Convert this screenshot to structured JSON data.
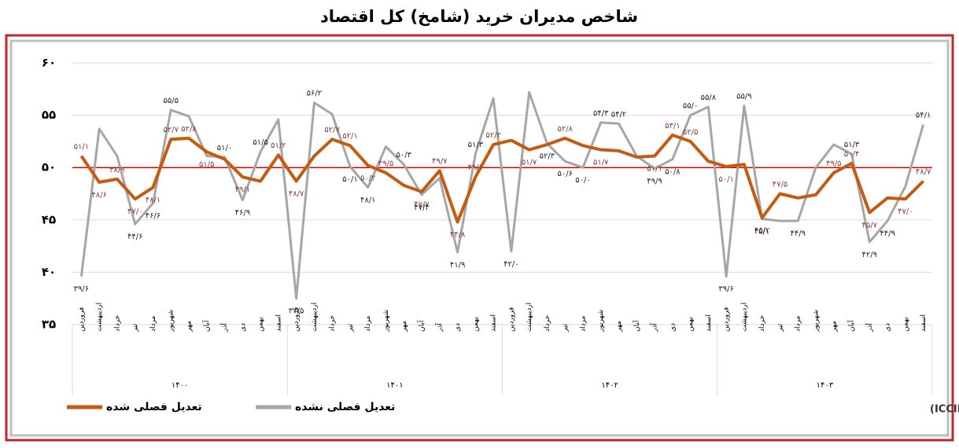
{
  "chart_data": {
    "type": "line",
    "title": "شاخص مدیران خرید (شامخ) کل اقتصاد",
    "source": "منبع: اتاق بازرگانی، صنایع، معادن و کشاورزی ایران (ICCIMA)",
    "categories": [
      "فروردین",
      "اردیبهشت",
      "خرداد",
      "تیر",
      "مرداد",
      "شهریور",
      "مهر",
      "آبان",
      "آذر",
      "دی",
      "بهمن",
      "اسفند",
      "فروردین",
      "اردیبهشت",
      "خرداد",
      "تیر",
      "مرداد",
      "شهریور",
      "مهر",
      "آبان",
      "آذر",
      "دی",
      "بهمن",
      "اسفند",
      "فروردین",
      "اردیبهشت",
      "خرداد",
      "تیر",
      "مرداد",
      "شهریور",
      "مهر",
      "آبان",
      "آذر",
      "دی",
      "بهمن",
      "اسفند",
      "فروردین",
      "اردیبهشت",
      "خرداد",
      "تیر",
      "مرداد",
      "شهریور",
      "مهر",
      "آبان",
      "آذر",
      "دی",
      "بهمن",
      "اسفند"
    ],
    "year_groups": [
      "۱۴۰۰",
      "۱۴۰۱",
      "۱۴۰۲",
      "۱۴۰۳"
    ],
    "series": [
      {
        "name": "تعدیل فصلی شده",
        "color": "#c55a11",
        "values": [
          51.1,
          48.6,
          48.9,
          47.0,
          48.1,
          52.7,
          52.8,
          51.5,
          50.8,
          49.1,
          48.7,
          51.2,
          48.7,
          51.1,
          52.7,
          52.1,
          50.2,
          49.5,
          48.3,
          47.7,
          49.7,
          44.8,
          49.1,
          52.2,
          52.6,
          51.7,
          52.2,
          52.8,
          52.1,
          51.7,
          51.6,
          51.0,
          51.1,
          53.1,
          52.5,
          50.6,
          50.1,
          50.3,
          45.2,
          47.5,
          47.1,
          47.4,
          49.5,
          50.4,
          45.7,
          47.1,
          47.0,
          48.7
        ],
        "value_labels": [
          "۵۱/۱",
          "۴۸/۶",
          "۴۸/۹",
          "۴۷/۰",
          "۴۸/۱",
          "۵۲/۷",
          "۵۲/۸",
          "۵۱/۵",
          null,
          "۴۹/۱",
          null,
          "۵۱/۲",
          "۴۸/۷",
          null,
          "۵۲/۷",
          "۵۲/۱",
          "۵۰/۲",
          "۴۹/۵",
          null,
          "۴۷/۷",
          "۴۹/۷",
          "۴۴/۸",
          "۴۹/۱",
          "۵۲/۲",
          null,
          "۵۱/۷",
          null,
          "۵۲/۸",
          null,
          "۵۱/۷",
          null,
          null,
          "۵۱/۱",
          "۵۳/۱",
          "۵۲/۵",
          null,
          "۵۰/۱",
          null,
          "۴۵/۲",
          "۴۷/۵",
          null,
          null,
          "۴۹/۵",
          "۵۰/۴",
          "۴۵/۷",
          null,
          "۴۷/۰",
          "۴۸/۷"
        ]
      },
      {
        "name": "تعدیل فصلی نشده",
        "color": "#a6a6a6",
        "values": [
          39.6,
          53.7,
          51.1,
          44.6,
          46.6,
          55.5,
          54.9,
          51.1,
          51.0,
          46.9,
          51.5,
          54.6,
          37.5,
          56.2,
          55.1,
          50.1,
          48.1,
          52.0,
          50.3,
          47.4,
          49.0,
          41.9,
          51.3,
          56.6,
          42.0,
          57.2,
          52.3,
          50.6,
          50.0,
          54.3,
          54.2,
          51.1,
          49.9,
          50.8,
          55.0,
          55.8,
          39.6,
          55.9,
          45.1,
          44.9,
          44.9,
          50.0,
          52.2,
          51.3,
          42.9,
          44.9,
          48.2,
          54.1
        ],
        "value_labels": [
          "۳۹/۶",
          null,
          null,
          "۴۴/۶",
          "۴۶/۶",
          "۵۵/۵",
          null,
          null,
          "۵۱/۰",
          "۴۶/۹",
          "۵۱/۵",
          null,
          "۳۷/۵",
          "۵۶/۲",
          null,
          "۵۰/۱",
          "۴۸/۱",
          null,
          "۵۰/۳",
          "۴۷/۴",
          null,
          "۴۱/۹",
          "۵۱/۳",
          null,
          "۴۲/۰",
          null,
          "۵۲/۳",
          "۵۰/۶",
          "۵۰/۰",
          "۵۴/۳",
          "۵۴/۲",
          null,
          "۴۹/۹",
          "۵۰/۸",
          "۵۵/۰",
          "۵۵/۸",
          "۳۹/۶",
          "۵۵/۹",
          "۴۵/۱",
          null,
          "۴۴/۹",
          null,
          null,
          "۵۱/۳",
          "۴۲/۹",
          "۴۴/۹",
          null,
          "۵۴/۱"
        ]
      }
    ],
    "ylim": [
      35,
      60
    ],
    "yticks": [
      {
        "value": 35,
        "label": "۳۵"
      },
      {
        "value": 40,
        "label": "۴۰"
      },
      {
        "value": 45,
        "label": "۴۵"
      },
      {
        "value": 50,
        "label": "۵۰"
      },
      {
        "value": 55,
        "label": "۵۵"
      },
      {
        "value": 60,
        "label": "۶۰"
      }
    ],
    "grid": true,
    "reference_line": {
      "value": 50,
      "color": "#e00000"
    }
  }
}
